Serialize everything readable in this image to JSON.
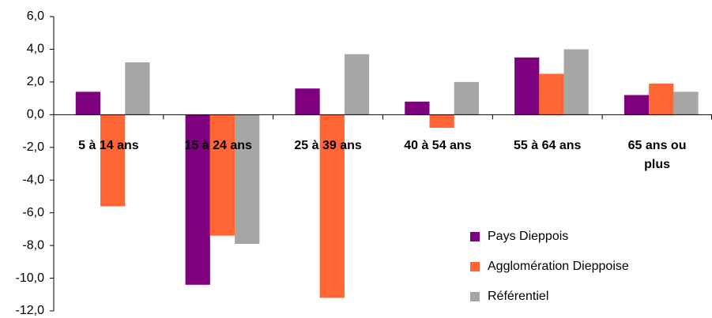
{
  "chart_data": {
    "type": "bar",
    "categories": [
      "5 à 14 ans",
      "15 à 24 ans",
      "25 à 39 ans",
      "40 à 54 ans",
      "55 à 64 ans",
      "65 ans ou plus"
    ],
    "series": [
      {
        "name": "Pays Dieppois",
        "color": "#7f007f",
        "values": [
          1.4,
          -10.4,
          1.6,
          0.8,
          3.5,
          1.2
        ]
      },
      {
        "name": "Agglomération Dieppoise",
        "color": "#ff6633",
        "values": [
          -5.6,
          -7.4,
          -11.2,
          -0.8,
          2.5,
          1.9
        ]
      },
      {
        "name": "Référentiel",
        "color": "#a6a6a6",
        "values": [
          3.2,
          -7.9,
          3.7,
          2.0,
          4.0,
          1.4
        ]
      }
    ],
    "ylim": [
      -12,
      6
    ],
    "yticks": [
      {
        "value": 6,
        "label": "6,0"
      },
      {
        "value": 4,
        "label": "4,0"
      },
      {
        "value": 2,
        "label": "2,0"
      },
      {
        "value": 0,
        "label": "0,0"
      },
      {
        "value": -2,
        "label": "-2,0"
      },
      {
        "value": -4,
        "label": "-4,0"
      },
      {
        "value": -6,
        "label": "-6,0"
      },
      {
        "value": -8,
        "label": "-8,0"
      },
      {
        "value": -10,
        "label": "-10,0"
      },
      {
        "value": -12,
        "label": "-12,0"
      }
    ],
    "grid": false,
    "legend": "lower right"
  }
}
